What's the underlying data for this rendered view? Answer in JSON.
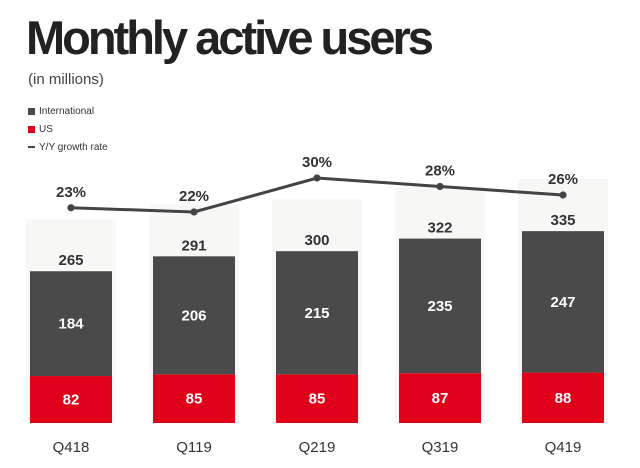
{
  "title": "Monthly active users",
  "subtitle": "(in millions)",
  "legend": [
    {
      "label": "International",
      "color": "#4a4a4a",
      "kind": "box"
    },
    {
      "label": "US",
      "color": "#e1001a",
      "kind": "box"
    },
    {
      "label": "Y/Y growth rate",
      "color": "#444444",
      "kind": "line"
    }
  ],
  "chart_data": {
    "type": "bar",
    "stacked": true,
    "categories": [
      "Q418",
      "Q119",
      "Q219",
      "Q319",
      "Q419"
    ],
    "series": [
      {
        "name": "US",
        "values": [
          82,
          85,
          85,
          87,
          88
        ],
        "color": "#e1001a"
      },
      {
        "name": "International",
        "values": [
          184,
          206,
          215,
          235,
          247
        ],
        "color": "#4a4a4a"
      }
    ],
    "totals": [
      265,
      291,
      300,
      322,
      335
    ],
    "growth": {
      "name": "Y/Y growth rate",
      "values": [
        23,
        22,
        30,
        28,
        26
      ],
      "labels": [
        "23%",
        "22%",
        "30%",
        "28%",
        "26%"
      ],
      "color": "#444444"
    },
    "title": "Monthly active users",
    "xlabel": "",
    "ylabel": "",
    "unit": "(in millions)",
    "grid": false,
    "legend_position": "top-left"
  }
}
